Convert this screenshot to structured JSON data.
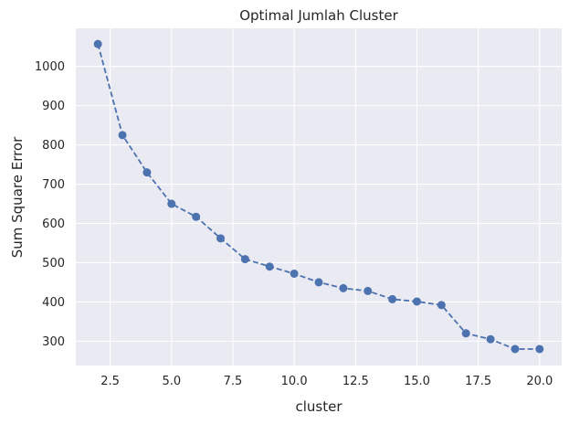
{
  "chart_data": {
    "type": "line",
    "title": "Optimal Jumlah Cluster",
    "xlabel": "cluster",
    "ylabel": "Sum Square Error",
    "xlim": [
      1.1,
      20.9
    ],
    "ylim": [
      238,
      1097
    ],
    "xticks": [
      "2.5",
      "5.0",
      "7.5",
      "10.0",
      "12.5",
      "15.0",
      "17.5",
      "20.0"
    ],
    "xtick_values": [
      2.5,
      5.0,
      7.5,
      10.0,
      12.5,
      15.0,
      17.5,
      20.0
    ],
    "yticks": [
      "300",
      "400",
      "500",
      "600",
      "700",
      "800",
      "900",
      "1000"
    ],
    "ytick_values": [
      300,
      400,
      500,
      600,
      700,
      800,
      900,
      1000
    ],
    "grid": true,
    "line_style": "dashed",
    "marker": "circle",
    "color": "#4c72b0",
    "background": "#eaeaf2",
    "x": [
      2,
      3,
      4,
      5,
      6,
      7,
      8,
      9,
      10,
      11,
      12,
      13,
      14,
      15,
      16,
      17,
      18,
      19,
      20
    ],
    "series": [
      {
        "values": [
          1057,
          825,
          730,
          650,
          617,
          562,
          509,
          490,
          472,
          450,
          435,
          428,
          407,
          401,
          392,
          320,
          305,
          280,
          280
        ]
      }
    ]
  }
}
